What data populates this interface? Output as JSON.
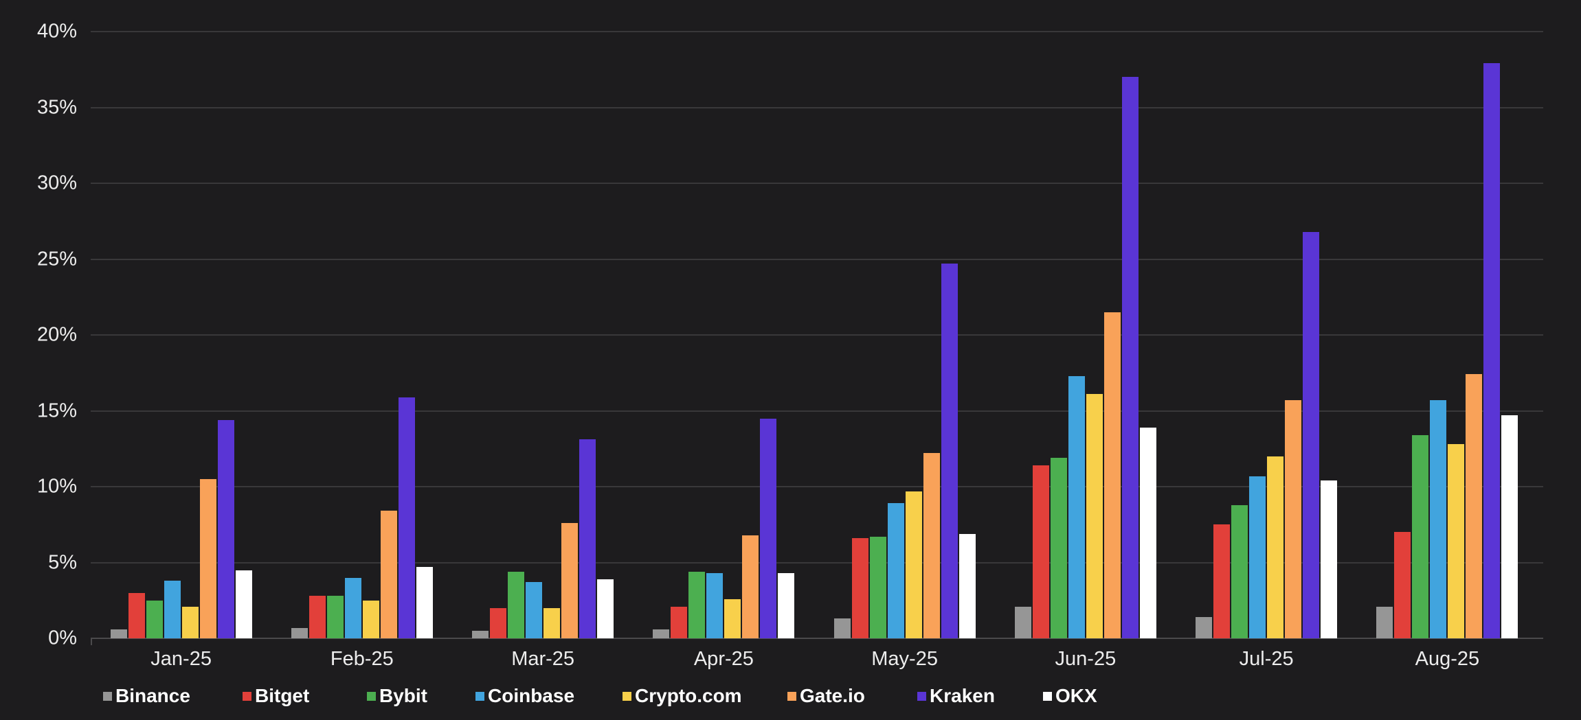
{
  "chart_data": {
    "type": "bar",
    "title": "",
    "categories": [
      "Jan-25",
      "Feb-25",
      "Mar-25",
      "Apr-25",
      "May-25",
      "Jun-25",
      "Jul-25",
      "Aug-25"
    ],
    "series": [
      {
        "name": "Binance",
        "color": "#969696",
        "values": [
          0.6,
          0.7,
          0.5,
          0.6,
          1.3,
          2.1,
          1.4,
          2.1
        ]
      },
      {
        "name": "Bitget",
        "color": "#e2403a",
        "values": [
          3.0,
          2.8,
          2.0,
          2.1,
          6.6,
          11.4,
          7.5,
          7.0
        ]
      },
      {
        "name": "Bybit",
        "color": "#4caf50",
        "values": [
          2.5,
          2.8,
          4.4,
          4.4,
          6.7,
          11.9,
          8.8,
          13.4
        ]
      },
      {
        "name": "Coinbase",
        "color": "#41a4de",
        "values": [
          3.8,
          4.0,
          3.7,
          4.3,
          8.9,
          17.3,
          10.7,
          15.7
        ]
      },
      {
        "name": "Crypto.com",
        "color": "#f8d04b",
        "values": [
          2.1,
          2.5,
          2.0,
          2.6,
          9.7,
          16.1,
          12.0,
          12.8
        ]
      },
      {
        "name": "Gate.io",
        "color": "#f9a259",
        "values": [
          10.5,
          8.4,
          7.6,
          6.8,
          12.2,
          21.5,
          15.7,
          17.4
        ]
      },
      {
        "name": "Kraken",
        "color": "#5a35d5",
        "values": [
          14.4,
          15.9,
          13.1,
          14.5,
          24.7,
          37.0,
          26.8,
          37.9
        ]
      },
      {
        "name": "OKX",
        "color": "#ffffff",
        "values": [
          4.5,
          4.7,
          3.9,
          4.3,
          6.9,
          13.9,
          10.4,
          14.7
        ]
      }
    ],
    "ylim": [
      0,
      40
    ],
    "ytick_step": 5,
    "ytick_suffix": "%",
    "grid": true,
    "legend_position": "bottom"
  },
  "colors": {
    "background": "#1d1c1e",
    "gridline": "#39383a",
    "axis_line": "#4b4a4c",
    "tick_label": "#ededed",
    "legend_label": "#ffffff"
  }
}
